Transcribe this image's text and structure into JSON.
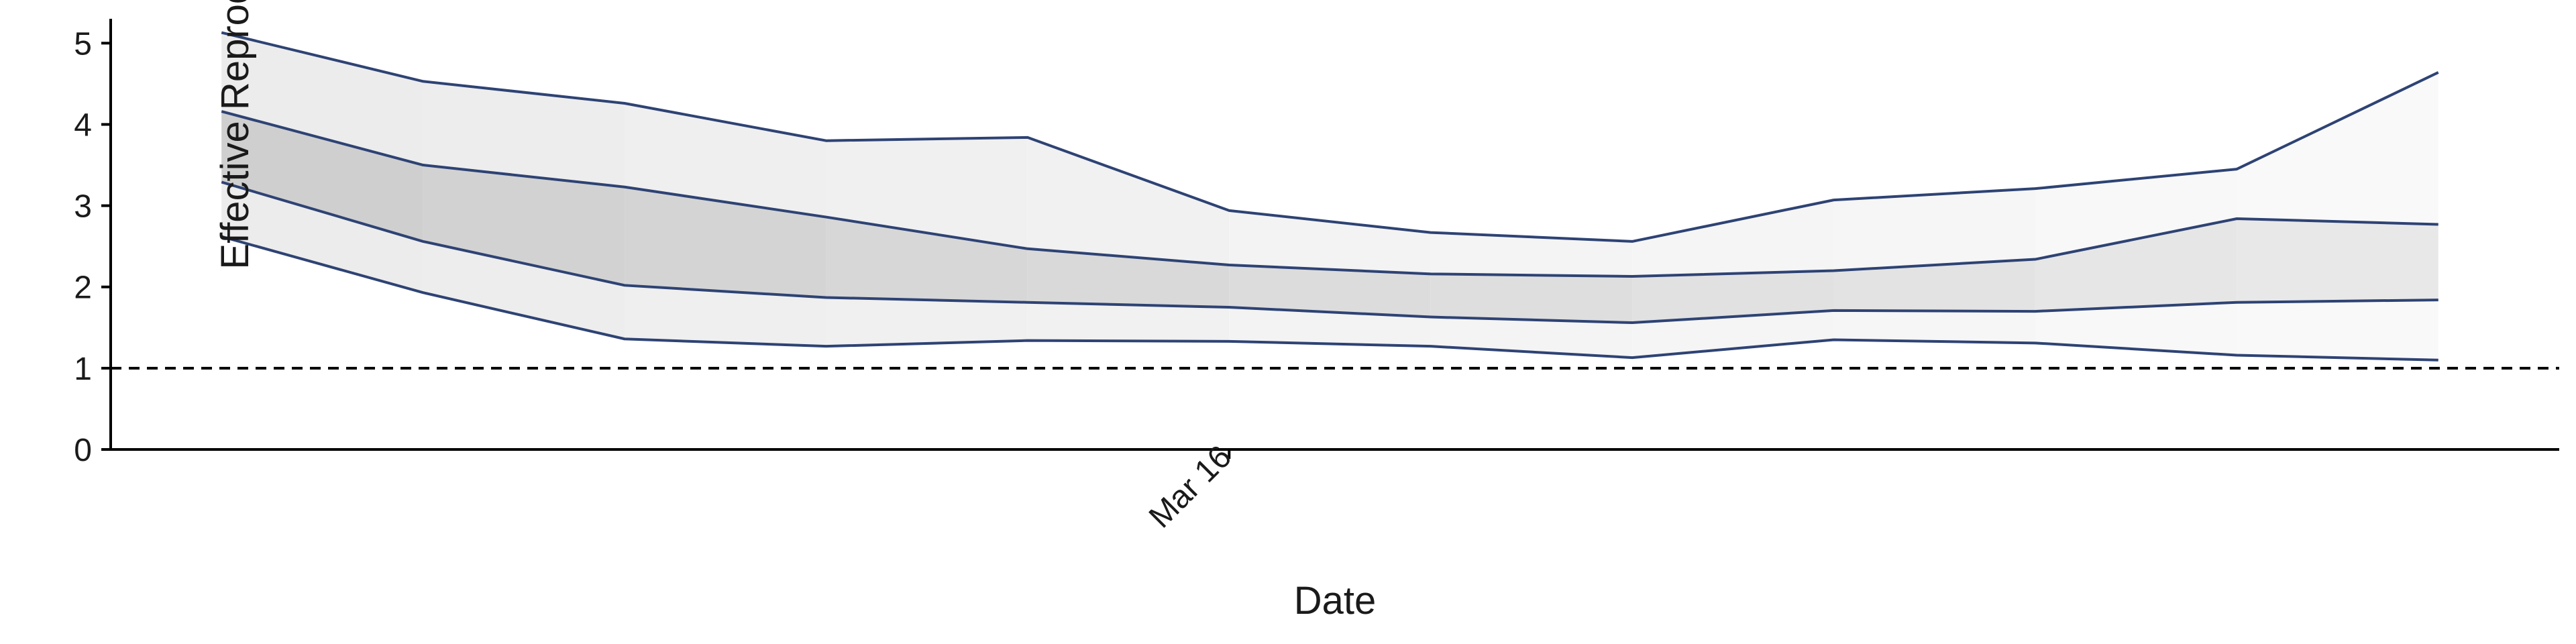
{
  "chart_data": {
    "type": "area",
    "xlabel": "Date",
    "ylabel": "Effective Reproduction no",
    "x_ticks": [
      {
        "x": 6,
        "label": "Mar 16"
      }
    ],
    "x": [
      1,
      2,
      3,
      4,
      5,
      6,
      7,
      8,
      9,
      10,
      11,
      12
    ],
    "ylim": [
      0,
      5.3
    ],
    "xlim": [
      0.45,
      12.6
    ],
    "y_ticks": [
      0,
      1,
      2,
      3,
      4,
      5
    ],
    "reference_line": {
      "y": 1,
      "style": "dashed"
    },
    "bands": [
      {
        "name": "outer",
        "lower": [
          2.62,
          1.93,
          1.36,
          1.27,
          1.34,
          1.33,
          1.27,
          1.13,
          1.35,
          1.31,
          1.16,
          1.1
        ],
        "upper": [
          5.13,
          4.53,
          4.26,
          3.8,
          3.84,
          2.94,
          2.67,
          2.56,
          3.07,
          3.21,
          3.45,
          4.64
        ]
      },
      {
        "name": "inner",
        "lower": [
          3.29,
          2.56,
          2.02,
          1.87,
          1.81,
          1.75,
          1.63,
          1.56,
          1.71,
          1.7,
          1.81,
          1.84
        ],
        "upper": [
          4.16,
          3.5,
          3.23,
          2.86,
          2.47,
          2.27,
          2.16,
          2.13,
          2.2,
          2.34,
          2.84,
          2.77
        ]
      }
    ],
    "colors": {
      "line": "#2e4374",
      "reference": "#000000",
      "axis": "#000000"
    }
  }
}
